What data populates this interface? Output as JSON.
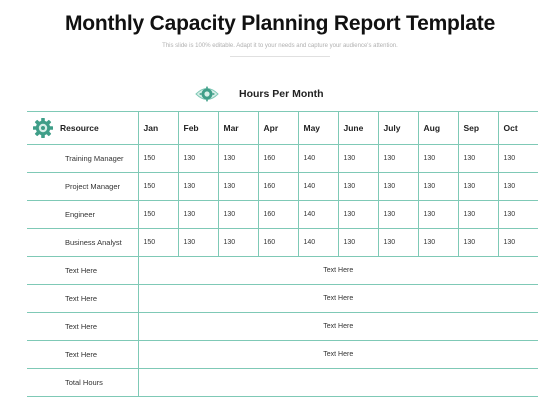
{
  "header": {
    "title": "Monthly Capacity Planning Report Template",
    "subtitle": "This slide is 100% editable. Adapt it to your needs and capture your audience's attention."
  },
  "section": {
    "label": "Hours Per Month",
    "icon": "eye-gear-icon"
  },
  "table": {
    "resource_header": "Resource",
    "resource_icon": "gear-icon",
    "months": [
      "Jan",
      "Feb",
      "Mar",
      "Apr",
      "May",
      "June",
      "July",
      "Aug",
      "Sep",
      "Oct"
    ],
    "rows": [
      {
        "name": "Training Manager",
        "values": [
          "150",
          "130",
          "130",
          "160",
          "140",
          "130",
          "130",
          "130",
          "130",
          "130"
        ]
      },
      {
        "name": "Project Manager",
        "values": [
          "150",
          "130",
          "130",
          "160",
          "140",
          "130",
          "130",
          "130",
          "130",
          "130"
        ]
      },
      {
        "name": "Engineer",
        "values": [
          "150",
          "130",
          "130",
          "160",
          "140",
          "130",
          "130",
          "130",
          "130",
          "130"
        ]
      },
      {
        "name": "Business Analyst",
        "values": [
          "150",
          "130",
          "130",
          "160",
          "140",
          "130",
          "130",
          "130",
          "130",
          "130"
        ]
      }
    ],
    "text_rows": [
      {
        "name": "Text Here",
        "merged": "Text Here"
      },
      {
        "name": "Text Here",
        "merged": "Text Here"
      },
      {
        "name": "Text Here",
        "merged": "Text Here"
      },
      {
        "name": "Text Here",
        "merged": "Text Here"
      }
    ],
    "total_row": {
      "name": "Total Hours",
      "merged": ""
    }
  },
  "colors": {
    "accent": "#7fc9b6",
    "icon_dark": "#3f9e88"
  }
}
